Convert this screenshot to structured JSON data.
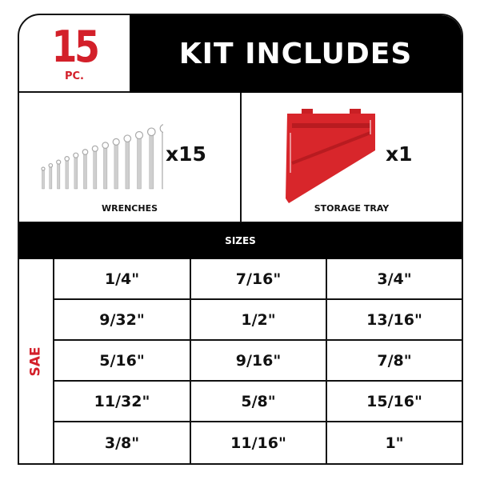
{
  "header": {
    "count": "15",
    "count_unit": "PC.",
    "title": "KIT INCLUDES"
  },
  "items": [
    {
      "label": "WRENCHES",
      "quantity": "x15",
      "icon": "wrench-set-image"
    },
    {
      "label": "STORAGE TRAY",
      "quantity": "x1",
      "icon": "storage-tray-image"
    }
  ],
  "sizes": {
    "heading": "SIZES",
    "standard": "SAE",
    "values": [
      "1/4\"",
      "7/16\"",
      "3/4\"",
      "9/32\"",
      "1/2\"",
      "13/16\"",
      "5/16\"",
      "9/16\"",
      "7/8\"",
      "11/32\"",
      "5/8\"",
      "15/16\"",
      "3/8\"",
      "11/16\"",
      "1\""
    ]
  },
  "colors": {
    "accent": "#d3202a",
    "dark": "#000000"
  }
}
